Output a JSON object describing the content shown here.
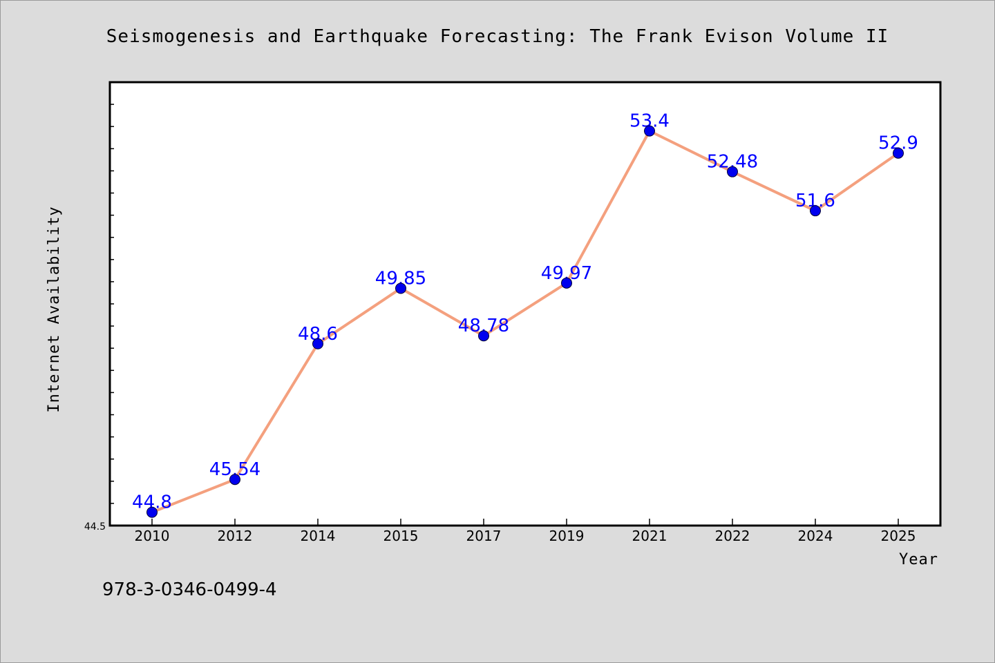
{
  "chart_data": {
    "type": "line",
    "title": "Seismogenesis and Earthquake Forecasting: The Frank Evison Volume II",
    "xlabel": "Year",
    "ylabel": "Internet Availability",
    "categories": [
      "2010",
      "2012",
      "2014",
      "2015",
      "2017",
      "2019",
      "2021",
      "2022",
      "2024",
      "2025"
    ],
    "series": [
      {
        "values": [
          44.8,
          45.54,
          48.6,
          49.85,
          48.78,
          49.97,
          53.4,
          52.48,
          51.6,
          52.9
        ]
      }
    ],
    "y_tick_labels": [
      "44.5"
    ],
    "ylim": [
      44.5,
      54.5
    ],
    "grid": false,
    "line_color": "#f4a07e",
    "marker_color": "#0000ee",
    "label_color": "#0000ff",
    "plot_background": "#ffffff",
    "figure_background": "#dcdcdc"
  },
  "footer": {
    "isbn": "978-3-0346-0499-4"
  }
}
